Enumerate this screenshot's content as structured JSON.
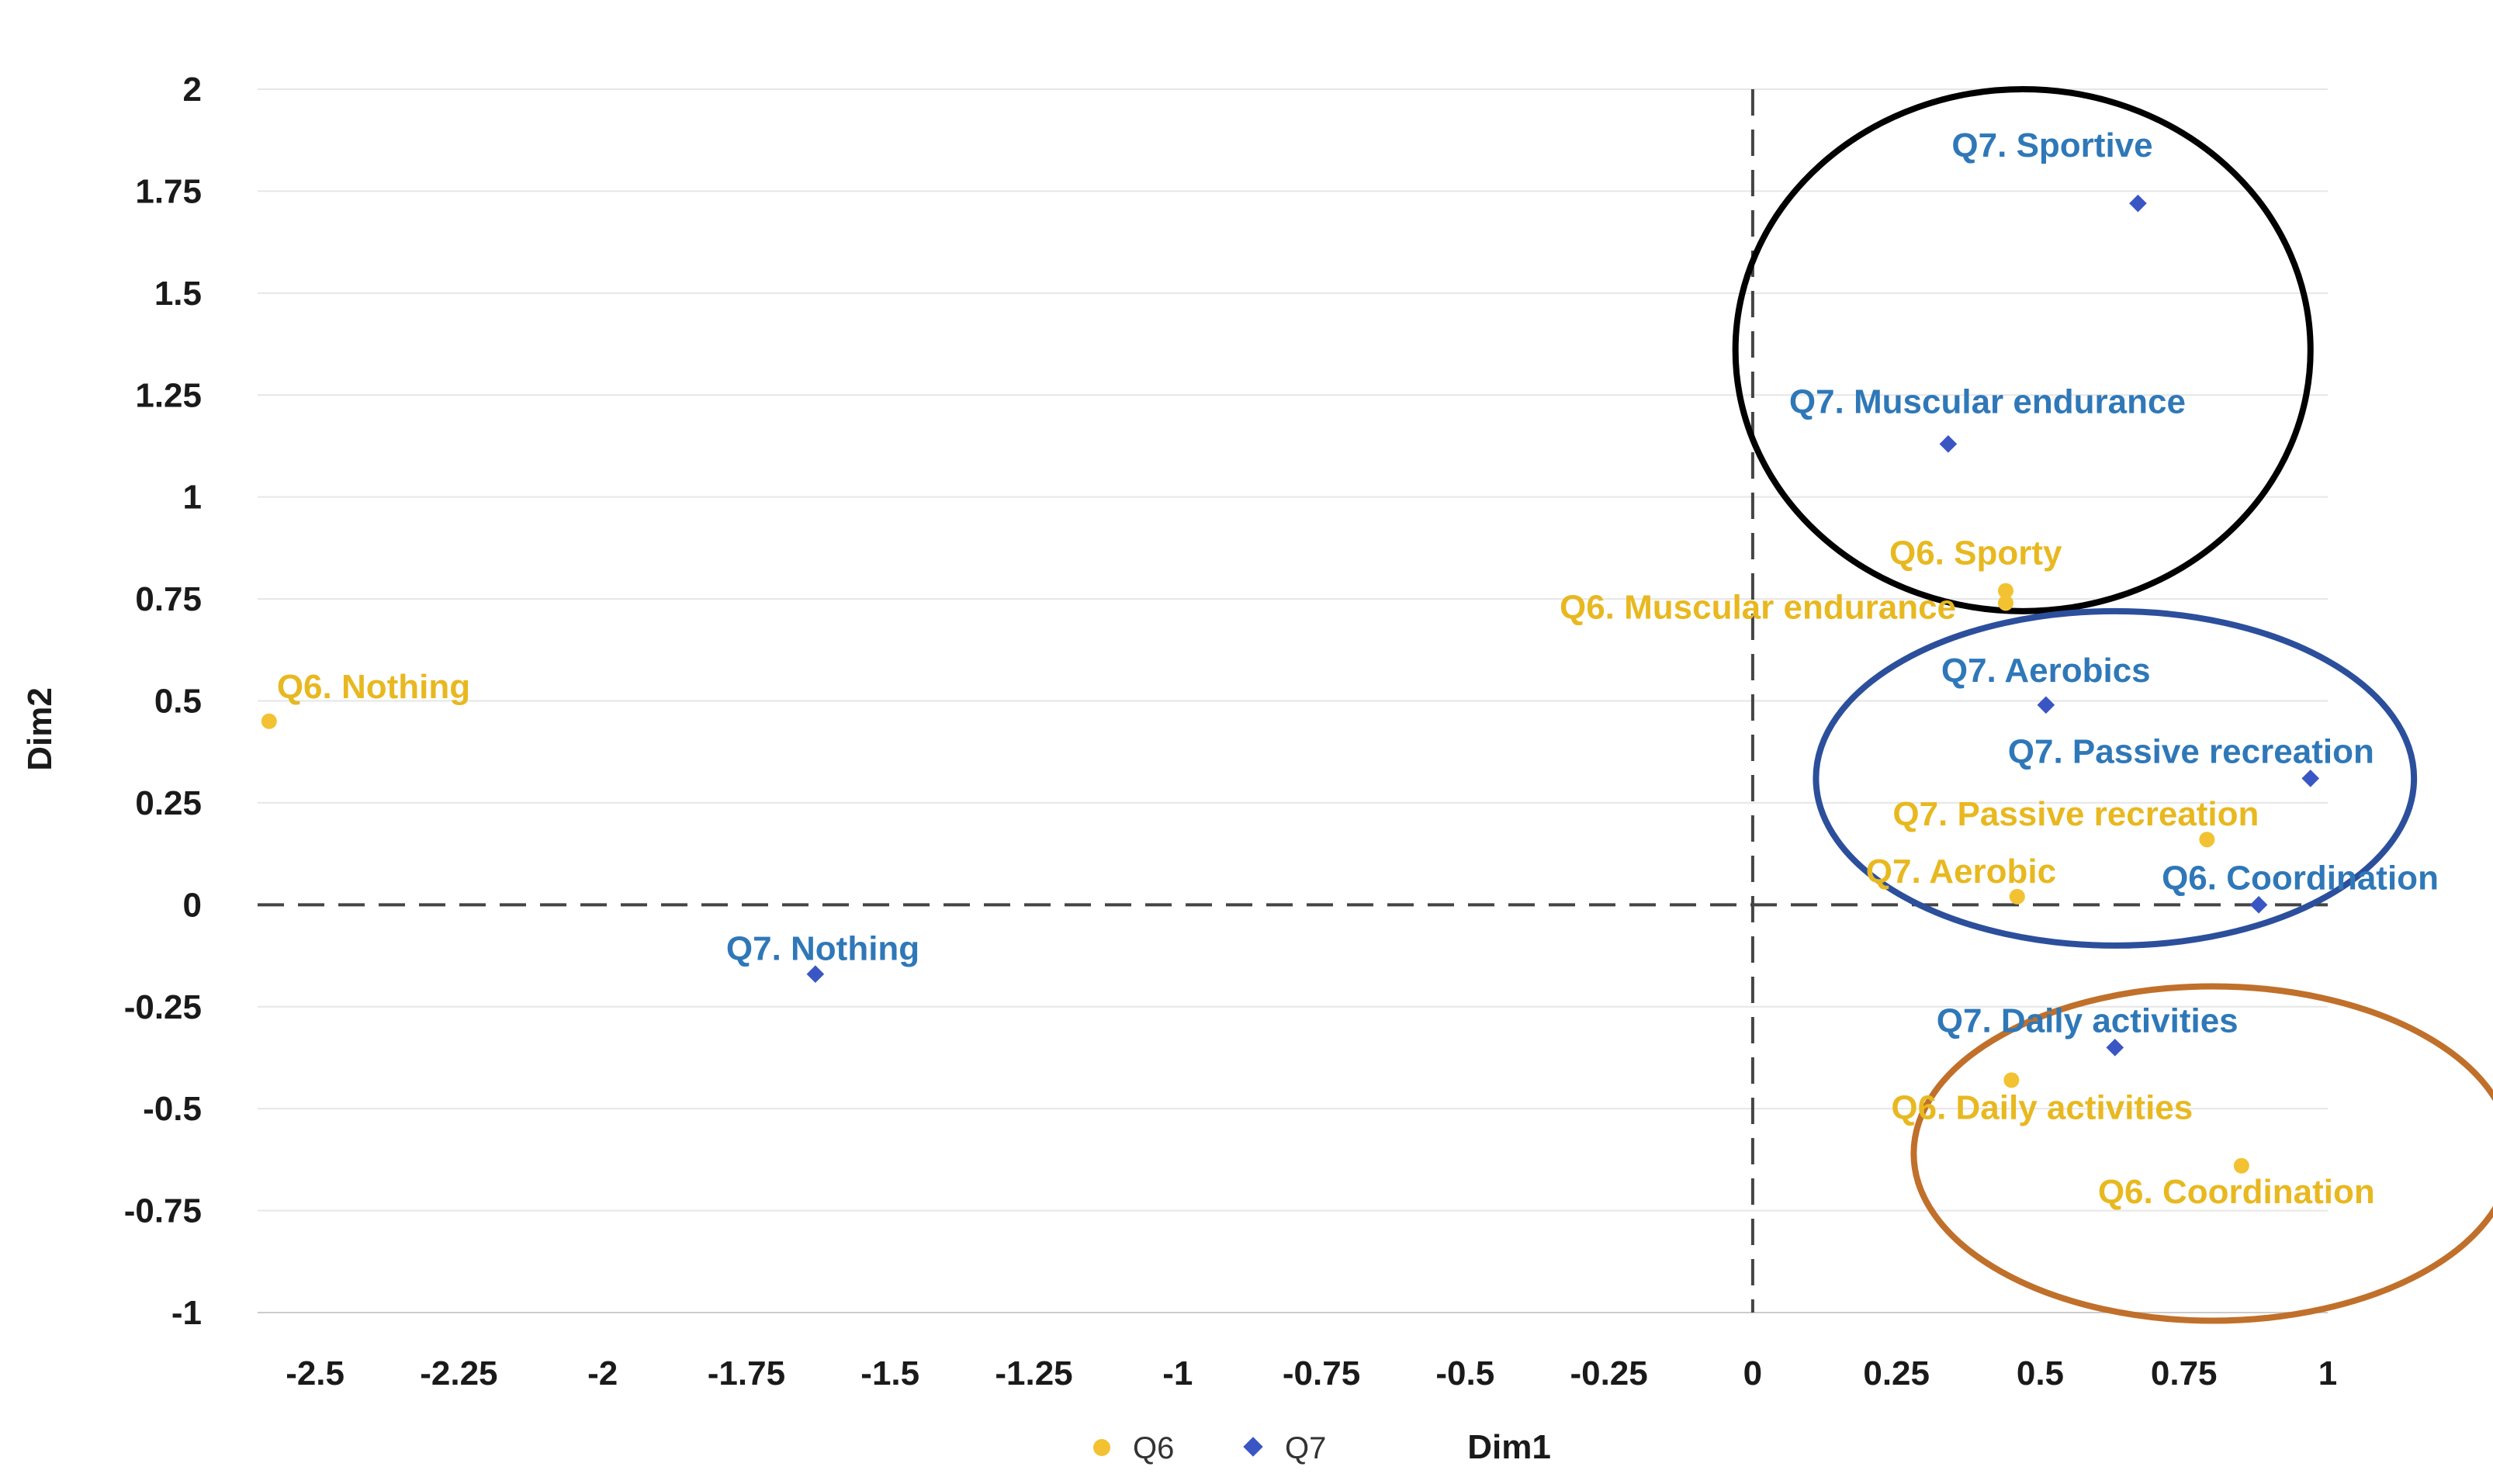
{
  "chart_data": {
    "type": "scatter",
    "title": "",
    "xlabel": "Dim1",
    "ylabel": "Dim2",
    "xlim": [
      -2.6,
      1.0
    ],
    "ylim": [
      -1.0,
      2.0
    ],
    "x_ticks": [
      "-2.5",
      "-2.25",
      "-2",
      "-1.75",
      "-1.5",
      "-1.25",
      "-1",
      "-0.75",
      "-0.5",
      "-0.25",
      "0",
      "0.25",
      "0.5",
      "0.75",
      "1"
    ],
    "x_tick_values": [
      -2.5,
      -2.25,
      -2,
      -1.75,
      -1.5,
      -1.25,
      -1,
      -0.75,
      -0.5,
      -0.25,
      0,
      0.25,
      0.5,
      0.75,
      1
    ],
    "y_ticks": [
      "2",
      "1.75",
      "1.5",
      "1.25",
      "1",
      "0.75",
      "0.5",
      "0.25",
      "0",
      "-0.25",
      "-0.5",
      "-0.75",
      "-1"
    ],
    "y_tick_values": [
      2,
      1.75,
      1.5,
      1.25,
      1,
      0.75,
      0.5,
      0.25,
      0,
      -0.25,
      -0.5,
      -0.75,
      -1
    ],
    "grid": true,
    "legend_position": "bottom",
    "colors": {
      "Q6": "#f2c232",
      "Q7": "#3a56c4",
      "Q6_label": "#e8b820",
      "Q7_label": "#2f78b8"
    },
    "series": [
      {
        "name": "Q6",
        "marker": "circle",
        "points": [
          {
            "label": "Q6. Nothing",
            "x": -2.58,
            "y": 0.45
          },
          {
            "label": "Q6. Sporty",
            "x": 0.44,
            "y": 0.77
          },
          {
            "label": "Q6. Muscular endurance",
            "x": 0.44,
            "y": 0.74
          },
          {
            "label": "Q7. Passive recreation",
            "x": 0.79,
            "y": 0.16
          },
          {
            "label": "Q7. Aerobic",
            "x": 0.46,
            "y": 0.02
          },
          {
            "label": "Q6. Daily activities",
            "x": 0.45,
            "y": -0.43
          },
          {
            "label": "Q6. Coordination",
            "x": 0.85,
            "y": -0.64
          }
        ]
      },
      {
        "name": "Q7",
        "marker": "diamond",
        "points": [
          {
            "label": "Q7. Sportive",
            "x": 0.67,
            "y": 1.72
          },
          {
            "label": "Q7. Muscular endurance",
            "x": 0.34,
            "y": 1.13
          },
          {
            "label": "Q7. Aerobics",
            "x": 0.51,
            "y": 0.49
          },
          {
            "label": "Q7. Passive recreation",
            "x": 0.97,
            "y": 0.31
          },
          {
            "label": "Q6. Coordination",
            "x": 0.88,
            "y": 0.0
          },
          {
            "label": "Q7. Nothing",
            "x": -1.63,
            "y": -0.17
          },
          {
            "label": "Q7. Daily activities",
            "x": 0.63,
            "y": -0.35
          }
        ]
      }
    ],
    "annotations": [
      {
        "shape": "ellipse",
        "color": "#000000",
        "cx": 0.47,
        "cy": 1.36,
        "rx": 0.5,
        "ry": 0.64
      },
      {
        "shape": "ellipse",
        "color": "#2c4f9c",
        "cx": 0.63,
        "cy": 0.31,
        "rx": 0.52,
        "ry": 0.41
      },
      {
        "shape": "ellipse",
        "color": "#c0702a",
        "cx": 0.8,
        "cy": -0.61,
        "rx": 0.52,
        "ry": 0.41
      }
    ]
  }
}
